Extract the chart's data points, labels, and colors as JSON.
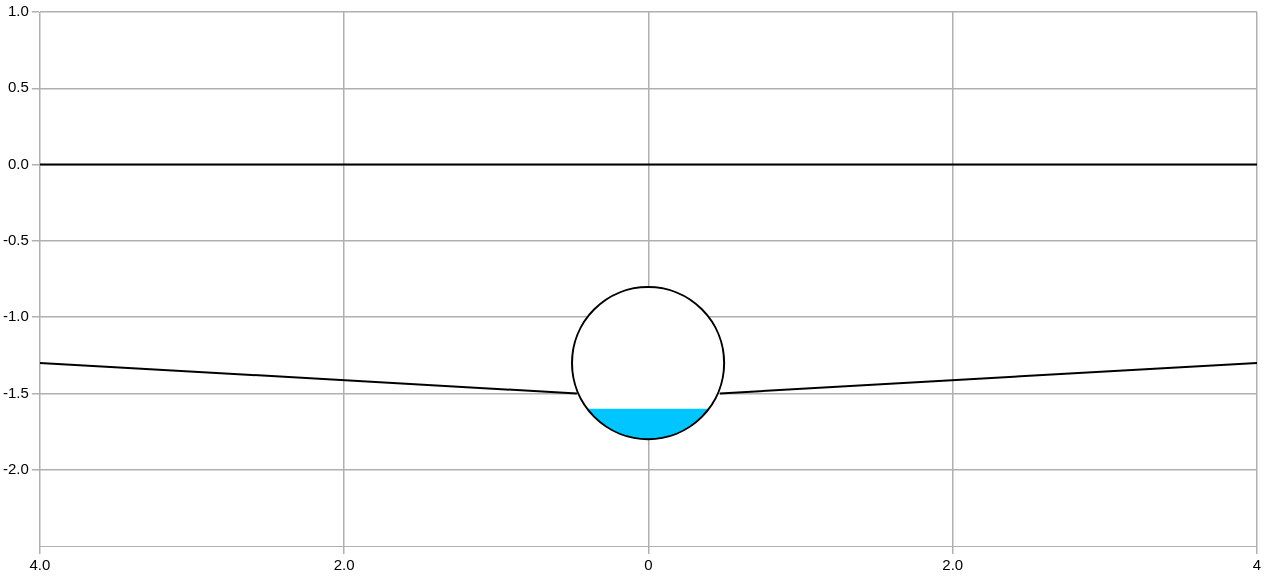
{
  "chart_data": {
    "type": "line",
    "xlim": [
      -4,
      4
    ],
    "ylim": [
      -2.5,
      1.0
    ],
    "xticks": [
      {
        "value": -4,
        "label": "4.0"
      },
      {
        "value": -2,
        "label": "2.0"
      },
      {
        "value": 0,
        "label": "0"
      },
      {
        "value": 2,
        "label": "2.0"
      },
      {
        "value": 4,
        "label": "4"
      }
    ],
    "yticks": [
      {
        "value": 1,
        "label": "1.0"
      },
      {
        "value": 0.5,
        "label": "0.5"
      },
      {
        "value": 0,
        "label": "0.0"
      },
      {
        "value": -0.5,
        "label": "-0.5"
      },
      {
        "value": -1,
        "label": "-1.0"
      },
      {
        "value": -1.5,
        "label": "-1.5"
      },
      {
        "value": -2,
        "label": "-2.0"
      }
    ],
    "grid": true,
    "legend": false,
    "marker": "none",
    "line_style": "solid",
    "series": [
      {
        "type": "line",
        "color": "#000000",
        "x": [
          -4,
          4
        ],
        "values": [
          0,
          0
        ]
      },
      {
        "type": "line",
        "color": "#000000",
        "x": [
          -4,
          -0.47
        ],
        "values": [
          -1.3,
          -1.5
        ]
      },
      {
        "type": "line",
        "color": "#000000",
        "x": [
          0.47,
          4
        ],
        "values": [
          -1.5,
          -1.3
        ]
      }
    ]
  }
}
